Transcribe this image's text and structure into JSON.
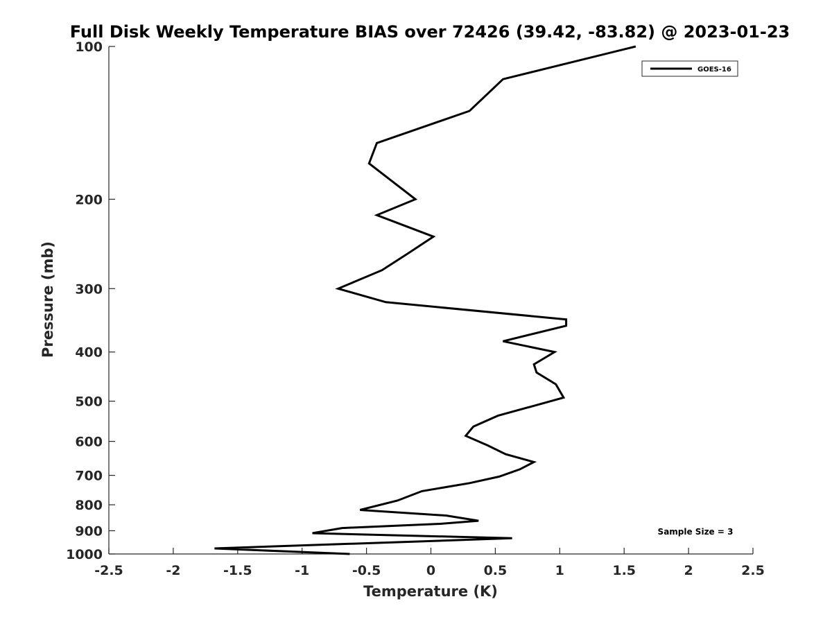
{
  "chart_data": {
    "type": "line",
    "title": "Full Disk Weekly Temperature BIAS over 72426 (39.42, -83.82) @ 2023-01-23",
    "xlabel": "Temperature (K)",
    "ylabel": "Pressure (mb)",
    "xlim": [
      -2.5,
      2.5
    ],
    "ylim": [
      1000,
      100
    ],
    "y_scale": "log",
    "y_reversed": true,
    "x_ticks": [
      -2.5,
      -2,
      -1.5,
      -1,
      -0.5,
      0,
      0.5,
      1,
      1.5,
      2,
      2.5
    ],
    "x_tick_labels": [
      "-2.5",
      "-2",
      "-1.5",
      "-1",
      "-0.5",
      "0",
      "0.5",
      "1",
      "1.5",
      "2",
      "2.5"
    ],
    "y_ticks": [
      100,
      200,
      300,
      400,
      500,
      600,
      700,
      800,
      900,
      1000
    ],
    "y_tick_labels": [
      "100",
      "200",
      "300",
      "400",
      "500",
      "600",
      "700",
      "800",
      "900",
      "1000"
    ],
    "grid": false,
    "legend_position": "top-right",
    "annotation": "Sample Size = 3",
    "series": [
      {
        "name": "GOES-16",
        "color": "#000000",
        "x": [
          1.59,
          0.56,
          0.3,
          -0.42,
          -0.48,
          -0.12,
          -0.42,
          0.02,
          -0.18,
          -0.38,
          -0.72,
          -0.35,
          1.05,
          1.05,
          0.56,
          0.96,
          0.8,
          0.82,
          0.97,
          1.03,
          0.52,
          0.33,
          0.27,
          0.44,
          0.58,
          0.8,
          0.69,
          0.53,
          0.3,
          -0.07,
          -0.26,
          -0.55,
          0.12,
          0.37,
          0.07,
          -0.69,
          -0.92,
          0.63,
          -1.68,
          -0.63
        ],
        "y": [
          100,
          116,
          134,
          155,
          170,
          200,
          215,
          237,
          256,
          276,
          300,
          319,
          345,
          355,
          381,
          400,
          423,
          439,
          463,
          492,
          534,
          561,
          585,
          611,
          636,
          659,
          681,
          704,
          725,
          752,
          785,
          819,
          840,
          860,
          872,
          889,
          910,
          931,
          975,
          1000
        ]
      }
    ]
  }
}
